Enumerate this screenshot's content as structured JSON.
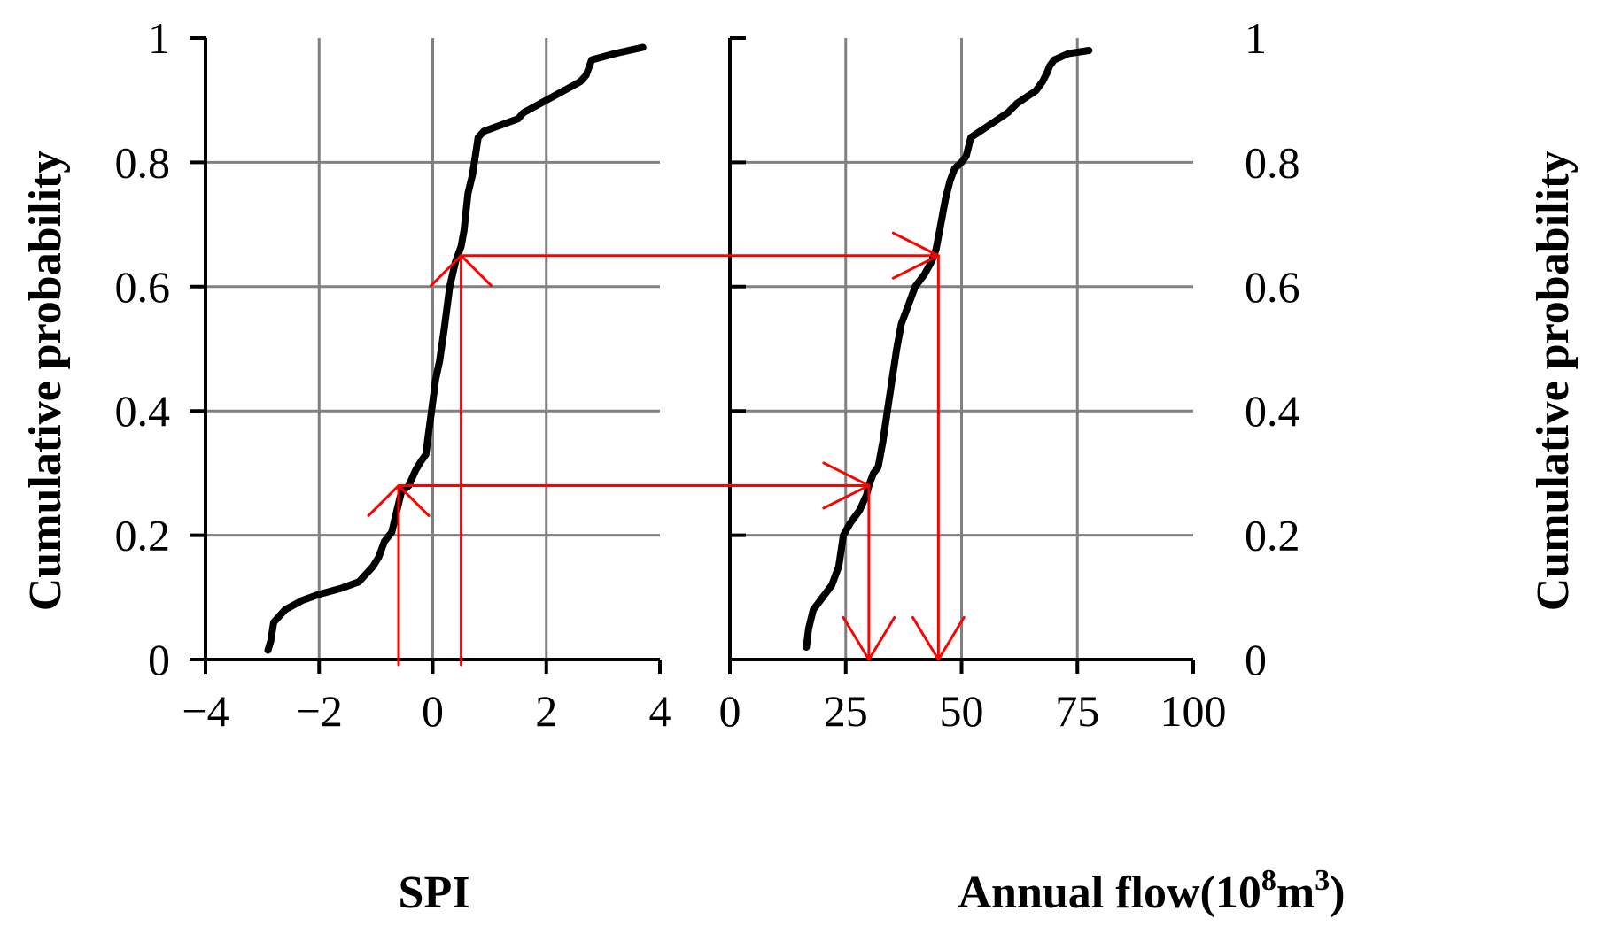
{
  "chart_data": [
    {
      "type": "line",
      "xlabel": "SPI",
      "ylabel": "Cumulative probability",
      "xlim": [
        -4,
        4
      ],
      "ylim": [
        0,
        1
      ],
      "xticks": [
        "−4",
        "−2",
        "0",
        "2",
        "4"
      ],
      "yticks": [
        "0",
        "0.2",
        "0.4",
        "0.6",
        "0.8",
        "1"
      ],
      "grid": true,
      "series": [
        {
          "color": "#000000",
          "x": [
            -2.9,
            -2.85,
            -2.8,
            -2.6,
            -2.3,
            -2.0,
            -1.6,
            -1.3,
            -1.15,
            -1.05,
            -0.95,
            -0.85,
            -0.72,
            -0.63,
            -0.55,
            -0.42,
            -0.3,
            -0.2,
            -0.12,
            -0.08,
            -0.02,
            0.05,
            0.12,
            0.2,
            0.3,
            0.4,
            0.5,
            0.55,
            0.62,
            0.7,
            0.75,
            0.8,
            0.9,
            1.2,
            1.5,
            1.6,
            1.8,
            2.1,
            2.4,
            2.6,
            2.7,
            2.8,
            3.2,
            3.7
          ],
          "y": [
            0.015,
            0.03,
            0.06,
            0.08,
            0.095,
            0.105,
            0.115,
            0.125,
            0.14,
            0.15,
            0.165,
            0.19,
            0.205,
            0.24,
            0.27,
            0.28,
            0.305,
            0.32,
            0.33,
            0.36,
            0.4,
            0.45,
            0.48,
            0.53,
            0.6,
            0.64,
            0.665,
            0.69,
            0.75,
            0.78,
            0.81,
            0.84,
            0.85,
            0.86,
            0.87,
            0.88,
            0.89,
            0.905,
            0.92,
            0.93,
            0.94,
            0.965,
            0.975,
            0.985
          ]
        }
      ]
    },
    {
      "type": "line",
      "xlabel": "Annual flow(10",
      "xlabel_sup1": "8",
      "xlabel_mid": "m",
      "xlabel_sup2": "3",
      "xlabel_end": ")",
      "ylabel": "Cumulative probability",
      "xlim": [
        0,
        100
      ],
      "ylim": [
        0,
        1
      ],
      "xticks": [
        "0",
        "25",
        "50",
        "75",
        "100"
      ],
      "yticks": [
        "0",
        "0.2",
        "0.4",
        "0.6",
        "0.8",
        "1"
      ],
      "grid": true,
      "series": [
        {
          "color": "#000000",
          "x": [
            16.5,
            17,
            18,
            20,
            22,
            23.5,
            24.5,
            26,
            28,
            29.5,
            30,
            31,
            32,
            33,
            34,
            35,
            36,
            37,
            38.5,
            39.5,
            40,
            42,
            43.5,
            44.5,
            45.5,
            46.5,
            47.5,
            48.5,
            50,
            51,
            52,
            54,
            56,
            58,
            60,
            62,
            64,
            66,
            67.5,
            68.5,
            69,
            70,
            73,
            77.5
          ],
          "y": [
            0.02,
            0.05,
            0.08,
            0.1,
            0.12,
            0.15,
            0.2,
            0.22,
            0.24,
            0.265,
            0.28,
            0.3,
            0.31,
            0.35,
            0.4,
            0.45,
            0.5,
            0.54,
            0.57,
            0.59,
            0.6,
            0.62,
            0.64,
            0.66,
            0.7,
            0.74,
            0.77,
            0.79,
            0.8,
            0.81,
            0.84,
            0.85,
            0.86,
            0.87,
            0.88,
            0.895,
            0.905,
            0.915,
            0.93,
            0.945,
            0.955,
            0.965,
            0.975,
            0.98
          ]
        }
      ]
    }
  ],
  "mapping": [
    {
      "spi": -0.6,
      "p": 0.28,
      "flow": 30
    },
    {
      "spi": 0.5,
      "p": 0.65,
      "flow": 45
    }
  ]
}
